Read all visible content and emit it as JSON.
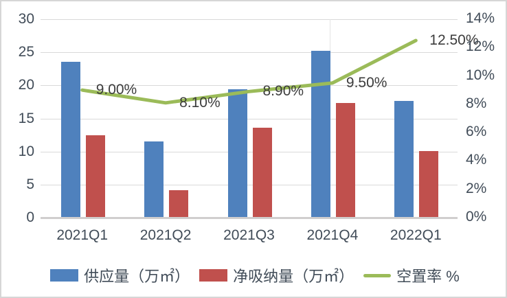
{
  "chart_data": {
    "type": "bar",
    "subtype": "combo-bar-line",
    "title": "",
    "xlabel": "",
    "ylabel": "",
    "grid": true,
    "legend_position": "bottom",
    "categories": [
      "2021Q1",
      "2021Q2",
      "2021Q3",
      "2021Q4",
      "2022Q1"
    ],
    "series": [
      {
        "name": "供应量（万㎡）",
        "type": "bar",
        "axis": "left",
        "color": "#4f81bd",
        "values": [
          23.6,
          11.5,
          19.4,
          25.2,
          17.7
        ]
      },
      {
        "name": "净吸纳量（万㎡）",
        "type": "bar",
        "axis": "left",
        "color": "#c0504d",
        "values": [
          12.5,
          4.2,
          13.6,
          17.3,
          10.1
        ]
      },
      {
        "name": "空置率 %",
        "type": "line",
        "axis": "right",
        "color": "#9bbb59",
        "values": [
          9.0,
          8.1,
          8.9,
          9.5,
          12.5
        ],
        "point_labels": [
          "9.00%",
          "8.10%",
          "8.90%",
          "9.50%",
          "12.50%"
        ]
      }
    ],
    "left_axis": {
      "min": 0,
      "max": 30,
      "step": 5,
      "ticks_top_to_bottom": [
        "30",
        "25",
        "20",
        "15",
        "10",
        "5",
        "0"
      ]
    },
    "right_axis": {
      "min": 0,
      "max": 14,
      "step": 2,
      "ticks_top_to_bottom": [
        "14%",
        "12%",
        "10%",
        "8%",
        "6%",
        "4%",
        "2%",
        "0%"
      ]
    }
  },
  "colors": {
    "bar_blue": "#4f81bd",
    "bar_red": "#c0504d",
    "line_green": "#9bbb59",
    "gridline": "#d9d9d9",
    "axis_baseline": "#d0cece",
    "axis_text": "#414c58",
    "data_label_text": "#3c3c3c"
  }
}
